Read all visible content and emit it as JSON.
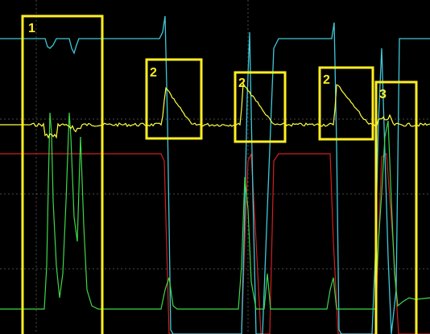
{
  "scope": {
    "background": "#000000",
    "grid_color": "#4a4a4a",
    "trace_colors": {
      "cyan": "#3fc8d8",
      "yellow": "#ffff40",
      "red": "#d02020",
      "green": "#3ed84a"
    }
  },
  "annotations": {
    "color": "#ffee22",
    "labels": [
      "1",
      "2",
      "2",
      "2",
      "3"
    ]
  }
}
